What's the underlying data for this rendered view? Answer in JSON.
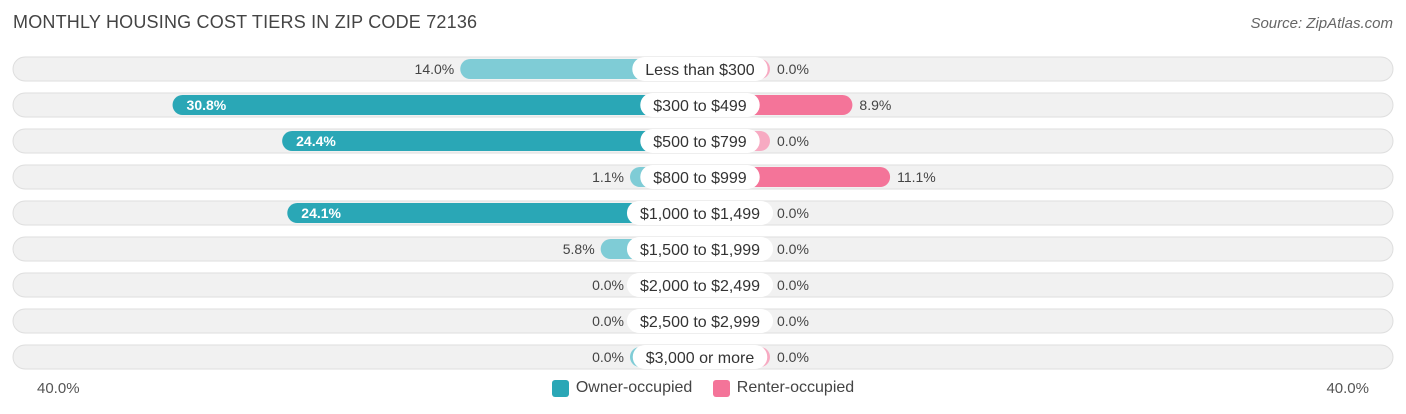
{
  "header": {
    "title": "MONTHLY HOUSING COST TIERS IN ZIP CODE 72136",
    "source": "Source: ZipAtlas.com"
  },
  "axis": {
    "left_label": "40.0%",
    "right_label": "40.0%"
  },
  "legend": {
    "owner_label": "Owner-occupied",
    "renter_label": "Renter-occupied"
  },
  "colors": {
    "owner_strong": "#2aa7b6",
    "owner_light": "#7fccd6",
    "renter_strong": "#f47499",
    "renter_light": "#f7aac2",
    "row_bg": "#f1f1f1",
    "row_border": "#dedede"
  },
  "chart_data": {
    "type": "bar",
    "orientation": "diverging-horizontal",
    "xlim": [
      -40,
      40
    ],
    "categories": [
      "Less than $300",
      "$300 to $499",
      "$500 to $799",
      "$800 to $999",
      "$1,000 to $1,499",
      "$1,500 to $1,999",
      "$2,000 to $2,499",
      "$2,500 to $2,999",
      "$3,000 or more"
    ],
    "series": [
      {
        "name": "Owner-occupied",
        "values": [
          14.0,
          30.8,
          24.4,
          1.1,
          24.1,
          5.8,
          0.0,
          0.0,
          0.0
        ],
        "labels": [
          "14.0%",
          "30.8%",
          "24.4%",
          "1.1%",
          "24.1%",
          "5.8%",
          "0.0%",
          "0.0%",
          "0.0%"
        ]
      },
      {
        "name": "Renter-occupied",
        "values": [
          0.0,
          8.9,
          0.0,
          11.1,
          0.0,
          0.0,
          0.0,
          0.0,
          0.0
        ],
        "labels": [
          "0.0%",
          "8.9%",
          "0.0%",
          "11.1%",
          "0.0%",
          "0.0%",
          "0.0%",
          "0.0%",
          "0.0%"
        ]
      }
    ]
  }
}
